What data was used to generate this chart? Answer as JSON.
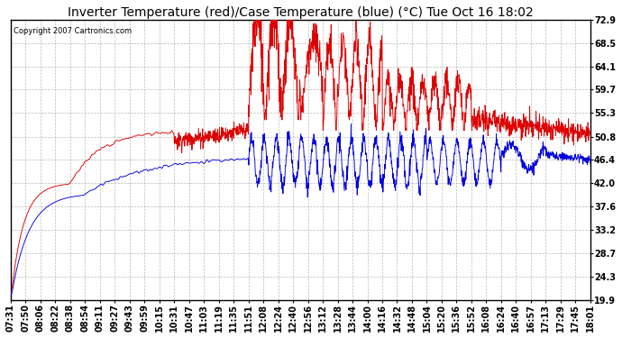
{
  "title": "Inverter Temperature (red)/Case Temperature (blue) (°C) Tue Oct 16 18:02",
  "copyright": "Copyright 2007 Cartronics.com",
  "yticks": [
    19.9,
    24.3,
    28.7,
    33.2,
    37.6,
    42.0,
    46.4,
    50.8,
    55.3,
    59.7,
    64.1,
    68.5,
    72.9
  ],
  "ylim": [
    19.9,
    72.9
  ],
  "red_color": "#dd0000",
  "blue_color": "#0000dd",
  "bg_color": "#ffffff",
  "grid_color": "#aaaaaa",
  "title_fontsize": 10,
  "tick_fontsize": 7,
  "xtick_labels": [
    "07:31",
    "07:50",
    "08:06",
    "08:22",
    "08:38",
    "08:54",
    "09:11",
    "09:27",
    "09:43",
    "09:59",
    "10:15",
    "10:31",
    "10:47",
    "11:03",
    "11:19",
    "11:35",
    "11:51",
    "12:08",
    "12:24",
    "12:40",
    "12:56",
    "13:12",
    "13:28",
    "13:44",
    "14:00",
    "14:16",
    "14:32",
    "14:48",
    "15:04",
    "15:20",
    "15:36",
    "15:52",
    "16:08",
    "16:24",
    "16:40",
    "16:57",
    "17:13",
    "17:29",
    "17:45",
    "18:01"
  ]
}
